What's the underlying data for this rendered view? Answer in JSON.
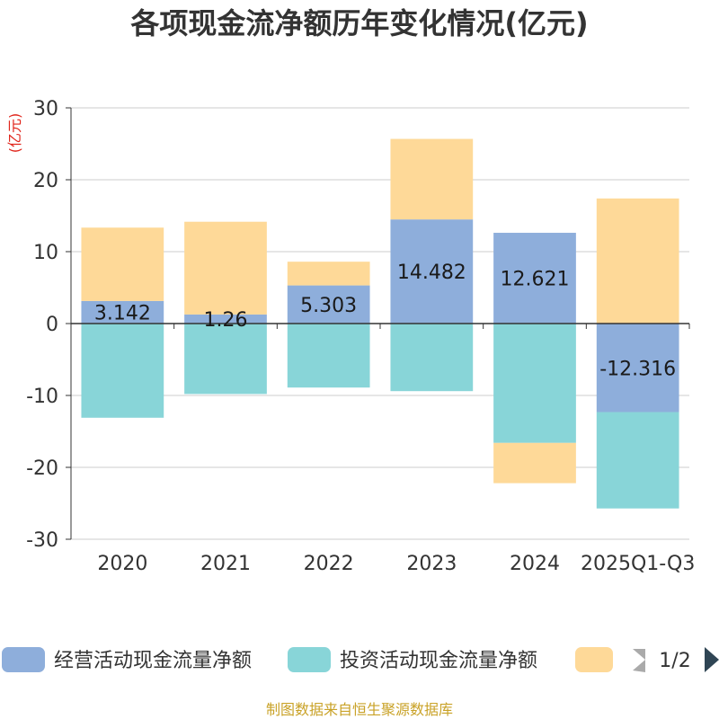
{
  "chart_data": {
    "type": "bar",
    "stacked": true,
    "title": "各项现金流净额历年变化情况(亿元)",
    "ylabel": "(亿元)",
    "ylim": [
      -30,
      30
    ],
    "yticks": [
      -30,
      -20,
      -10,
      0,
      10,
      20,
      30
    ],
    "categories": [
      "2020",
      "2021",
      "2022",
      "2023",
      "2024",
      "2025Q1-Q3"
    ],
    "series": [
      {
        "name": "经营活动现金流量净额",
        "color": "#8eaedb",
        "values": [
          3.142,
          1.26,
          5.303,
          14.482,
          12.621,
          -12.316
        ],
        "labels": [
          "3.142",
          "1.26",
          "5.303",
          "14.482",
          "12.621",
          "-12.316"
        ]
      },
      {
        "name": "投资活动现金流量净额",
        "color": "#88d5d8",
        "values": [
          -13.1,
          -9.8,
          -8.9,
          -9.4,
          -16.6,
          -13.4
        ]
      },
      {
        "name": "",
        "color": "#fed998",
        "values": [
          10.2,
          12.9,
          3.3,
          11.2,
          -5.6,
          17.4
        ]
      }
    ],
    "legend": {
      "position": "bottom",
      "page": "1/2"
    },
    "source": "制图数据来自恒生聚源数据库"
  }
}
